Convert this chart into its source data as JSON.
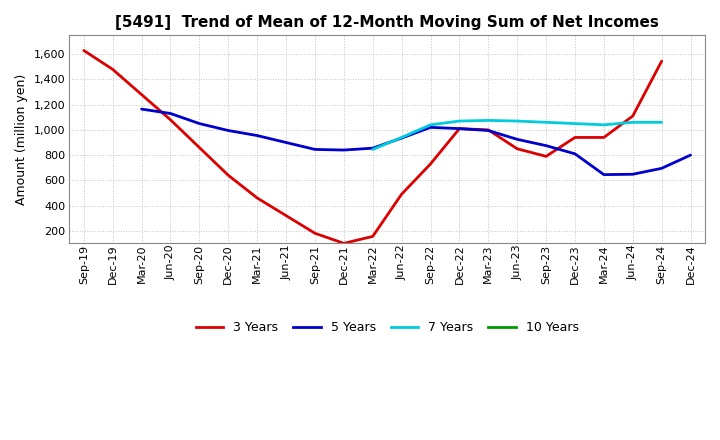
{
  "title": "[5491]  Trend of Mean of 12-Month Moving Sum of Net Incomes",
  "ylabel": "Amount (million yen)",
  "background_color": "#ffffff",
  "plot_bg_color": "#ffffff",
  "grid_color": "#999999",
  "x_labels": [
    "Sep-19",
    "Dec-19",
    "Mar-20",
    "Jun-20",
    "Sep-20",
    "Dec-20",
    "Mar-21",
    "Jun-21",
    "Sep-21",
    "Dec-21",
    "Mar-22",
    "Jun-22",
    "Sep-22",
    "Dec-22",
    "Mar-23",
    "Jun-23",
    "Sep-23",
    "Dec-23",
    "Mar-24",
    "Jun-24",
    "Sep-24",
    "Dec-24"
  ],
  "ylim": [
    100,
    1750
  ],
  "yticks": [
    200,
    400,
    600,
    800,
    1000,
    1200,
    1400,
    1600
  ],
  "series": {
    "3 Years": {
      "color": "#dd0000",
      "linewidth": 2.0,
      "values": [
        1630,
        1480,
        1280,
        1080,
        860,
        640,
        460,
        320,
        180,
        100,
        155,
        490,
        730,
        1010,
        1000,
        850,
        790,
        940,
        940,
        1110,
        1545,
        null
      ]
    },
    "5 Years": {
      "color": "#0000cc",
      "linewidth": 2.0,
      "values": [
        null,
        null,
        1165,
        1130,
        1050,
        995,
        955,
        900,
        845,
        840,
        855,
        935,
        1020,
        1010,
        995,
        925,
        875,
        810,
        645,
        648,
        695,
        800
      ]
    },
    "7 Years": {
      "color": "#00ccdd",
      "linewidth": 2.0,
      "values": [
        null,
        null,
        null,
        null,
        null,
        null,
        null,
        null,
        null,
        null,
        845,
        940,
        1040,
        1070,
        1075,
        1070,
        1060,
        1050,
        1040,
        1060,
        1060,
        null
      ]
    },
    "10 Years": {
      "color": "#009900",
      "linewidth": 2.0,
      "values": [
        null,
        null,
        null,
        null,
        null,
        null,
        null,
        null,
        null,
        null,
        null,
        null,
        null,
        null,
        null,
        null,
        null,
        null,
        null,
        null,
        null,
        null
      ]
    }
  },
  "legend_order": [
    "3 Years",
    "5 Years",
    "7 Years",
    "10 Years"
  ],
  "title_fontsize": 11,
  "ylabel_fontsize": 9,
  "tick_fontsize": 8,
  "legend_fontsize": 9
}
